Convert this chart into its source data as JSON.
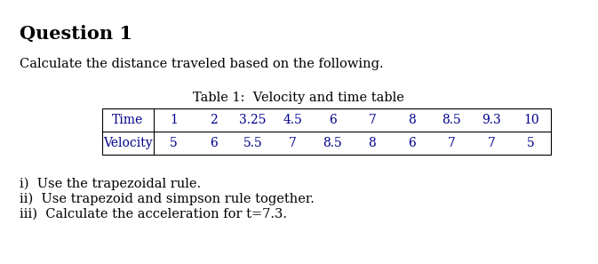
{
  "title": "Question 1",
  "subtitle": "Calculate the distance traveled based on the following.",
  "table_caption": "Table 1:  Velocity and time table",
  "table_headers": [
    "Time",
    "1",
    "2",
    "3.25",
    "4.5",
    "6",
    "7",
    "8",
    "8.5",
    "9.3",
    "10"
  ],
  "table_row": [
    "Velocity",
    "5",
    "6",
    "5.5",
    "7",
    "8.5",
    "8",
    "6",
    "7",
    "7",
    "5"
  ],
  "items": [
    "i)  Use the trapezoidal rule.",
    "ii)  Use trapezoid and simpson rule together.",
    "iii)  Calculate the acceleration for t=7.3."
  ],
  "bg_color": "#ffffff",
  "text_color": "#000000",
  "table_text_color": "#00008B",
  "caption_color": "#000000",
  "title_fontsize": 15,
  "body_fontsize": 10.5,
  "table_fontsize": 10,
  "caption_fontsize": 10.5
}
